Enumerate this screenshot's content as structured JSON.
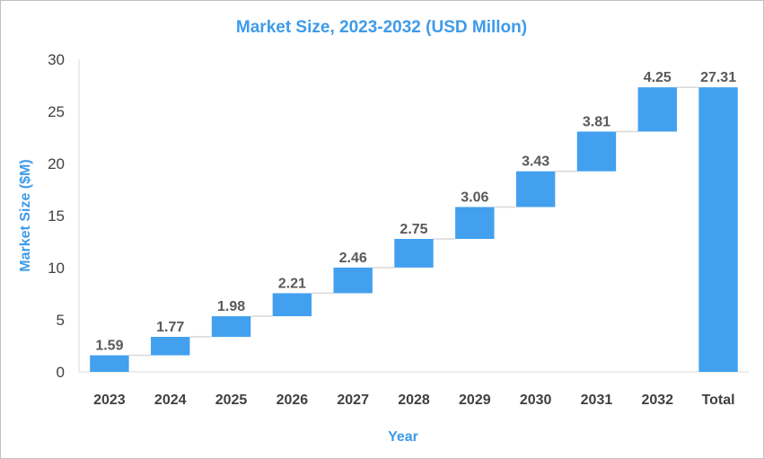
{
  "chart_data": {
    "type": "bar",
    "subtype": "waterfall",
    "title": "Market Size, 2023-2032 (USD Millon)",
    "xlabel": "Year",
    "ylabel": "Market Size ($M)",
    "ylim": [
      0,
      30
    ],
    "yticks": [
      "0",
      "5",
      "10",
      "15",
      "20",
      "25",
      "30"
    ],
    "categories": [
      "2023",
      "2024",
      "2025",
      "2026",
      "2027",
      "2028",
      "2029",
      "2030",
      "2031",
      "2032",
      "Total"
    ],
    "values": [
      1.59,
      1.77,
      1.98,
      2.21,
      2.46,
      2.75,
      3.06,
      3.43,
      3.81,
      4.25,
      27.31
    ],
    "labels": [
      "1.59",
      "1.77",
      "1.98",
      "2.21",
      "2.46",
      "2.75",
      "3.06",
      "3.43",
      "3.81",
      "4.25",
      "27.31"
    ],
    "total_index": 10,
    "bar_color": "#42a0ef",
    "connector_color": "#d9d9d9",
    "grid": false,
    "legend": "none"
  }
}
